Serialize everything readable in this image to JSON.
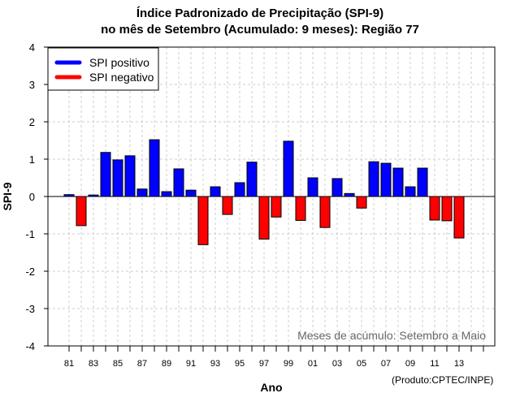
{
  "chart_data": {
    "type": "bar",
    "title": "Índice Padronizado de Precipitação (SPI-9)",
    "subtitle": "no mês de Setembro (Acumulado: 9 meses): Região 77",
    "xlabel": "Ano",
    "ylabel": "SPI-9",
    "ylim": [
      -4,
      4
    ],
    "yticks": [
      "4",
      "3",
      "2",
      "1",
      "0",
      "-1",
      "-2",
      "-3",
      "-4"
    ],
    "xlim": [
      1980,
      2016
    ],
    "xtick_labels": [
      "81",
      "83",
      "85",
      "87",
      "89",
      "91",
      "93",
      "95",
      "97",
      "99",
      "01",
      "03",
      "05",
      "07",
      "09",
      "11",
      "13"
    ],
    "grid": true,
    "legend": {
      "placement": "top-left",
      "entries": [
        {
          "label": "SPI positivo",
          "color": "#0000ff"
        },
        {
          "label": "SPI negativo",
          "color": "#ff0000"
        }
      ]
    },
    "annotation": "Meses de acúmulo: Setembro a Maio",
    "source": "(Produto:CPTEC/INPE)",
    "colors": {
      "positive": "#0000ff",
      "negative": "#ff0000"
    },
    "x": [
      1981,
      1982,
      1983,
      1984,
      1985,
      1986,
      1987,
      1988,
      1989,
      1990,
      1991,
      1992,
      1993,
      1994,
      1995,
      1996,
      1997,
      1998,
      1999,
      2000,
      2001,
      2002,
      2003,
      2004,
      2005,
      2006,
      2007,
      2008,
      2009,
      2010,
      2011,
      2012,
      2013
    ],
    "values": [
      0.05,
      -0.78,
      0.04,
      1.18,
      0.98,
      1.09,
      0.2,
      1.52,
      0.13,
      0.74,
      0.17,
      -1.29,
      0.26,
      -0.48,
      0.37,
      0.92,
      -1.14,
      -0.55,
      1.48,
      -0.64,
      0.5,
      -0.83,
      0.48,
      0.08,
      -0.31,
      0.93,
      0.89,
      0.76,
      0.26,
      0.76,
      -0.63,
      -0.65,
      -1.11
    ]
  }
}
